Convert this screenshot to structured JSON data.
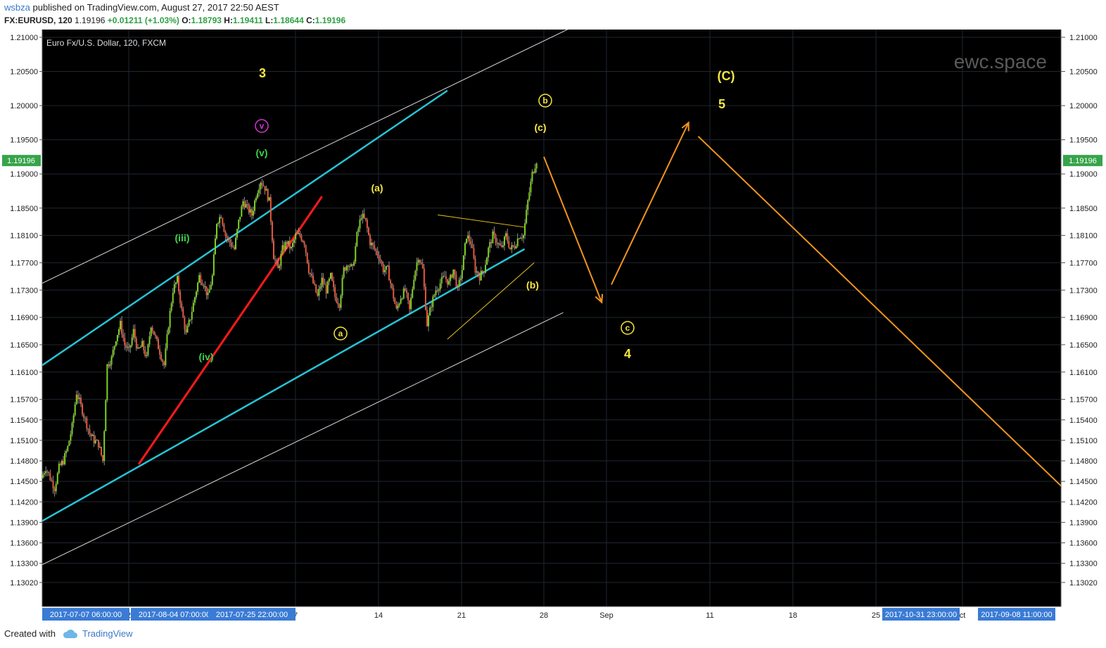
{
  "header": {
    "user": "wsbza",
    "published": "published on TradingView.com, August 27, 2017 22:50 AEST"
  },
  "quote": {
    "symbol": "FX:EURUSD, 120",
    "last": "1.19196",
    "change": "+0.01211 (+1.03%)",
    "open_label": "O:",
    "open": "1.18793",
    "high_label": "H:",
    "high": "1.19411",
    "low_label": "L:",
    "low": "1.18644",
    "close_label": "C:",
    "close": "1.19196"
  },
  "footer": {
    "created_with": "Created with",
    "brand": "TradingView"
  },
  "colors": {
    "background": "#000000",
    "up_candle": "#7ed321",
    "down_candle": "#e8573d",
    "channel_cyan": "#27c3d6",
    "channel_white": "#d9d9d9",
    "trend_red": "#ff1a1a",
    "projection_orange": "#f0941e",
    "label_yellow": "#f5e642",
    "label_green": "#3cd44a",
    "label_magenta": "#d633d6",
    "price_tag_green": "#36a44a",
    "time_tag_blue": "#3a7bd5"
  },
  "chart_data": {
    "type": "candlestick",
    "title": "Euro Fx/U.S. Dollar, 120, FXCM",
    "watermark": "ewc.space",
    "ylim": [
      1.1302,
      1.2122
    ],
    "y_ticks": [
      "1.21000",
      "1.20500",
      "1.20000",
      "1.19500",
      "1.19000",
      "1.18500",
      "1.18100",
      "1.17700",
      "1.17300",
      "1.16900",
      "1.16500",
      "1.16100",
      "1.15700",
      "1.15400",
      "1.15100",
      "1.14800",
      "1.14500",
      "1.14200",
      "1.13900",
      "1.13600",
      "1.13300",
      "1.13020"
    ],
    "current_price": "1.19196",
    "x_ticks": [
      "2",
      "7",
      "14",
      "21",
      "28",
      "Sep",
      "11",
      "18",
      "25",
      "ct"
    ],
    "x_tags": [
      "2017-07-07 06:00:00",
      "2017-08-04 07:00:00",
      "2017-07-25 22:00:00",
      "2017-10-31 23:00:00",
      "2017-09-08 11:00:00"
    ],
    "price_path": [
      1.1455,
      1.147,
      1.1455,
      1.144,
      1.147,
      1.148,
      1.15,
      1.153,
      1.158,
      1.156,
      1.154,
      1.152,
      1.151,
      1.1505,
      1.148,
      1.162,
      1.163,
      1.166,
      1.168,
      1.165,
      1.164,
      1.167,
      1.164,
      1.165,
      1.163,
      1.168,
      1.166,
      1.164,
      1.162,
      1.168,
      1.173,
      1.1745,
      1.17,
      1.1665,
      1.169,
      1.172,
      1.175,
      1.174,
      1.172,
      1.175,
      1.183,
      1.184,
      1.181,
      1.18,
      1.179,
      1.183,
      1.186,
      1.185,
      1.184,
      1.187,
      1.189,
      1.188,
      1.186,
      1.178,
      1.176,
      1.179,
      1.18,
      1.179,
      1.181,
      1.181,
      1.18,
      1.176,
      1.174,
      1.172,
      1.1745,
      1.173,
      1.175,
      1.172,
      1.171,
      1.176,
      1.177,
      1.176,
      1.181,
      1.184,
      1.183,
      1.18,
      1.179,
      1.178,
      1.176,
      1.176,
      1.173,
      1.17,
      1.172,
      1.173,
      1.17,
      1.175,
      1.178,
      1.176,
      1.168,
      1.171,
      1.173,
      1.174,
      1.175,
      1.174,
      1.176,
      1.173,
      1.176,
      1.181,
      1.18,
      1.176,
      1.175,
      1.176,
      1.179,
      1.181,
      1.18,
      1.179,
      1.181,
      1.179,
      1.1795,
      1.181,
      1.181,
      1.186,
      1.19,
      1.192
    ],
    "series": [
      {
        "name": "cyan upper channel",
        "points": [
          [
            "Jul 7",
            1.162
          ],
          [
            "Aug 18",
            1.2022
          ]
        ]
      },
      {
        "name": "cyan lower channel",
        "points": [
          [
            "Jul 7",
            1.1392
          ],
          [
            "Aug 26",
            1.179
          ]
        ]
      },
      {
        "name": "white upper channel",
        "points": [
          [
            "Jul 7",
            1.174
          ],
          [
            "Sep 1",
            1.2122
          ]
        ]
      },
      {
        "name": "white lower channel",
        "points": [
          [
            "Jul 7",
            1.1328
          ],
          [
            "Aug 30",
            1.1697
          ]
        ]
      },
      {
        "name": "red trendline",
        "points": [
          [
            "Jul 17",
            1.1475
          ],
          [
            "Aug 5",
            1.1867
          ]
        ]
      },
      {
        "name": "triangle upper",
        "points": [
          [
            "Aug 17",
            1.184
          ],
          [
            "Aug 26",
            1.1822
          ]
        ]
      },
      {
        "name": "triangle lower",
        "points": [
          [
            "Aug 18",
            1.1658
          ],
          [
            "Aug 27",
            1.177
          ]
        ]
      },
      {
        "name": "projection down 1",
        "points": [
          [
            "Aug 28",
            1.1925
          ],
          [
            "Sep 3",
            1.1712
          ]
        ]
      },
      {
        "name": "projection up",
        "points": [
          [
            "Sep 4",
            1.1738
          ],
          [
            "Sep 12",
            1.1975
          ]
        ]
      },
      {
        "name": "projection down 2",
        "points": [
          [
            "Sep 13",
            1.1955
          ],
          [
            "Oct 31",
            1.1302
          ]
        ]
      }
    ],
    "annotations": [
      {
        "text": "3",
        "style": "yellow"
      },
      {
        "text": "v",
        "style": "magenta-circle"
      },
      {
        "text": "(v)",
        "style": "green"
      },
      {
        "text": "(iii)",
        "style": "green"
      },
      {
        "text": "(iv)",
        "style": "green"
      },
      {
        "text": "(a)",
        "style": "yellow"
      },
      {
        "text": "a",
        "style": "yellow-circle"
      },
      {
        "text": "(b)",
        "style": "yellow"
      },
      {
        "text": "(c)",
        "style": "yellow"
      },
      {
        "text": "b",
        "style": "yellow-circle"
      },
      {
        "text": "c",
        "style": "yellow-circle"
      },
      {
        "text": "4",
        "style": "yellow"
      },
      {
        "text": "(C)",
        "style": "yellow"
      },
      {
        "text": "5",
        "style": "yellow"
      }
    ]
  }
}
